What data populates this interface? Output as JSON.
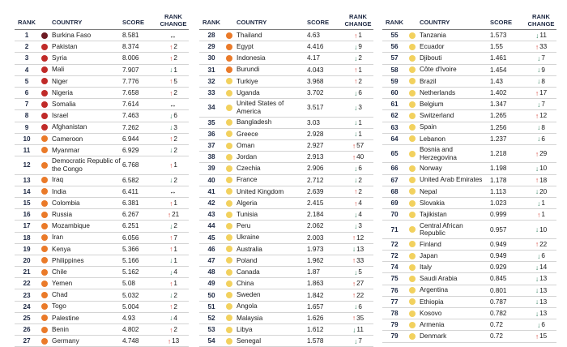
{
  "headers": {
    "rank": "RANK",
    "country": "COUNTRY",
    "score": "SCORE",
    "change_line1": "RANK",
    "change_line2": "CHANGE"
  },
  "colors": {
    "darkred": "#6d1b23",
    "red": "#c02a28",
    "orange": "#ea7a29",
    "yellow": "#f2d15e",
    "up": "#d43a2f",
    "down": "#2e7d5b"
  },
  "icons": {
    "up": "up-arrow-icon",
    "down": "down-arrow-icon",
    "same": "no-change-icon"
  },
  "columns": [
    [
      {
        "rank": "1",
        "country": "Burkina Faso",
        "score": "8.581",
        "dir": "same",
        "change": "",
        "level": "darkred"
      },
      {
        "rank": "2",
        "country": "Pakistan",
        "score": "8.374",
        "dir": "up",
        "change": "2",
        "level": "red"
      },
      {
        "rank": "3",
        "country": "Syria",
        "score": "8.006",
        "dir": "up",
        "change": "2",
        "level": "red"
      },
      {
        "rank": "4",
        "country": "Mali",
        "score": "7.907",
        "dir": "down",
        "change": "1",
        "level": "red"
      },
      {
        "rank": "5",
        "country": "Niger",
        "score": "7.776",
        "dir": "up",
        "change": "5",
        "level": "red"
      },
      {
        "rank": "6",
        "country": "Nigeria",
        "score": "7.658",
        "dir": "up",
        "change": "2",
        "level": "red"
      },
      {
        "rank": "7",
        "country": "Somalia",
        "score": "7.614",
        "dir": "same",
        "change": "",
        "level": "red"
      },
      {
        "rank": "8",
        "country": "Israel",
        "score": "7.463",
        "dir": "down",
        "change": "6",
        "level": "red"
      },
      {
        "rank": "9",
        "country": "Afghanistan",
        "score": "7.262",
        "dir": "down",
        "change": "3",
        "level": "red"
      },
      {
        "rank": "10",
        "country": "Cameroon",
        "score": "6.944",
        "dir": "up",
        "change": "2",
        "level": "orange"
      },
      {
        "rank": "11",
        "country": "Myanmar",
        "score": "6.929",
        "dir": "down",
        "change": "2",
        "level": "orange"
      },
      {
        "rank": "12",
        "country": "Democratic Republic of the Congo",
        "score": "6.768",
        "dir": "up",
        "change": "1",
        "level": "orange",
        "tall": true
      },
      {
        "rank": "13",
        "country": "Iraq",
        "score": "6.582",
        "dir": "down",
        "change": "2",
        "level": "orange"
      },
      {
        "rank": "14",
        "country": "India",
        "score": "6.411",
        "dir": "same",
        "change": "",
        "level": "orange"
      },
      {
        "rank": "15",
        "country": "Colombia",
        "score": "6.381",
        "dir": "up",
        "change": "1",
        "level": "orange"
      },
      {
        "rank": "16",
        "country": "Russia",
        "score": "6.267",
        "dir": "up",
        "change": "21",
        "level": "orange"
      },
      {
        "rank": "17",
        "country": "Mozambique",
        "score": "6.251",
        "dir": "down",
        "change": "2",
        "level": "orange"
      },
      {
        "rank": "18",
        "country": "Iran",
        "score": "6.056",
        "dir": "up",
        "change": "7",
        "level": "orange"
      },
      {
        "rank": "19",
        "country": "Kenya",
        "score": "5.366",
        "dir": "up",
        "change": "1",
        "level": "orange"
      },
      {
        "rank": "20",
        "country": "Philippines",
        "score": "5.166",
        "dir": "down",
        "change": "1",
        "level": "orange"
      },
      {
        "rank": "21",
        "country": "Chile",
        "score": "5.162",
        "dir": "down",
        "change": "4",
        "level": "orange"
      },
      {
        "rank": "22",
        "country": "Yemen",
        "score": "5.08",
        "dir": "up",
        "change": "1",
        "level": "orange"
      },
      {
        "rank": "23",
        "country": "Chad",
        "score": "5.032",
        "dir": "down",
        "change": "2",
        "level": "orange"
      },
      {
        "rank": "24",
        "country": "Togo",
        "score": "5.004",
        "dir": "up",
        "change": "2",
        "level": "orange"
      },
      {
        "rank": "25",
        "country": "Palestine",
        "score": "4.93",
        "dir": "down",
        "change": "4",
        "level": "orange"
      },
      {
        "rank": "26",
        "country": "Benin",
        "score": "4.802",
        "dir": "up",
        "change": "2",
        "level": "orange"
      },
      {
        "rank": "27",
        "country": "Germany",
        "score": "4.748",
        "dir": "up",
        "change": "13",
        "level": "orange"
      }
    ],
    [
      {
        "rank": "28",
        "country": "Thailand",
        "score": "4.63",
        "dir": "up",
        "change": "1",
        "level": "orange"
      },
      {
        "rank": "29",
        "country": "Egypt",
        "score": "4.416",
        "dir": "down",
        "change": "9",
        "level": "orange"
      },
      {
        "rank": "30",
        "country": "Indonesia",
        "score": "4.17",
        "dir": "down",
        "change": "2",
        "level": "orange"
      },
      {
        "rank": "31",
        "country": "Burundi",
        "score": "4.043",
        "dir": "up",
        "change": "1",
        "level": "orange"
      },
      {
        "rank": "32",
        "country": "Turkiye",
        "score": "3.968",
        "dir": "up",
        "change": "2",
        "level": "yellow"
      },
      {
        "rank": "33",
        "country": "Uganda",
        "score": "3.702",
        "dir": "down",
        "change": "6",
        "level": "yellow"
      },
      {
        "rank": "34",
        "country": "United States of America",
        "score": "3.517",
        "dir": "down",
        "change": "3",
        "level": "yellow",
        "tall": true
      },
      {
        "rank": "35",
        "country": "Bangladesh",
        "score": "3.03",
        "dir": "down",
        "change": "1",
        "level": "yellow"
      },
      {
        "rank": "36",
        "country": "Greece",
        "score": "2.928",
        "dir": "down",
        "change": "1",
        "level": "yellow"
      },
      {
        "rank": "37",
        "country": "Oman",
        "score": "2.927",
        "dir": "up",
        "change": "57",
        "level": "yellow"
      },
      {
        "rank": "38",
        "country": "Jordan",
        "score": "2.913",
        "dir": "up",
        "change": "40",
        "level": "yellow"
      },
      {
        "rank": "39",
        "country": "Czechia",
        "score": "2.906",
        "dir": "down",
        "change": "6",
        "level": "yellow"
      },
      {
        "rank": "40",
        "country": "France",
        "score": "2.712",
        "dir": "down",
        "change": "2",
        "level": "yellow"
      },
      {
        "rank": "41",
        "country": "United Kingdom",
        "score": "2.639",
        "dir": "up",
        "change": "2",
        "level": "yellow"
      },
      {
        "rank": "42",
        "country": "Algeria",
        "score": "2.415",
        "dir": "up",
        "change": "4",
        "level": "yellow"
      },
      {
        "rank": "43",
        "country": "Tunisia",
        "score": "2.184",
        "dir": "down",
        "change": "4",
        "level": "yellow"
      },
      {
        "rank": "44",
        "country": "Peru",
        "score": "2.062",
        "dir": "down",
        "change": "3",
        "level": "yellow"
      },
      {
        "rank": "45",
        "country": "Ukraine",
        "score": "2.003",
        "dir": "up",
        "change": "12",
        "level": "yellow"
      },
      {
        "rank": "46",
        "country": "Australia",
        "score": "1.973",
        "dir": "down",
        "change": "13",
        "level": "yellow"
      },
      {
        "rank": "47",
        "country": "Poland",
        "score": "1.962",
        "dir": "up",
        "change": "33",
        "level": "yellow"
      },
      {
        "rank": "48",
        "country": "Canada",
        "score": "1.87",
        "dir": "down",
        "change": "5",
        "level": "yellow"
      },
      {
        "rank": "49",
        "country": "China",
        "score": "1.863",
        "dir": "up",
        "change": "27",
        "level": "yellow"
      },
      {
        "rank": "50",
        "country": "Sweden",
        "score": "1.842",
        "dir": "up",
        "change": "22",
        "level": "yellow"
      },
      {
        "rank": "51",
        "country": "Angola",
        "score": "1.657",
        "dir": "down",
        "change": "6",
        "level": "yellow"
      },
      {
        "rank": "52",
        "country": "Malaysia",
        "score": "1.626",
        "dir": "up",
        "change": "35",
        "level": "yellow"
      },
      {
        "rank": "53",
        "country": "Libya",
        "score": "1.612",
        "dir": "down",
        "change": "11",
        "level": "yellow"
      },
      {
        "rank": "54",
        "country": "Senegal",
        "score": "1.578",
        "dir": "down",
        "change": "7",
        "level": "yellow"
      }
    ],
    [
      {
        "rank": "55",
        "country": "Tanzania",
        "score": "1.573",
        "dir": "down",
        "change": "11",
        "level": "yellow"
      },
      {
        "rank": "56",
        "country": "Ecuador",
        "score": "1.55",
        "dir": "up",
        "change": "33",
        "level": "yellow"
      },
      {
        "rank": "57",
        "country": "Djibouti",
        "score": "1.461",
        "dir": "down",
        "change": "7",
        "level": "yellow"
      },
      {
        "rank": "58",
        "country": "Côte d'Ivoire",
        "score": "1.454",
        "dir": "down",
        "change": "9",
        "level": "yellow"
      },
      {
        "rank": "59",
        "country": "Brazil",
        "score": "1.43",
        "dir": "down",
        "change": "8",
        "level": "yellow"
      },
      {
        "rank": "60",
        "country": "Netherlands",
        "score": "1.402",
        "dir": "up",
        "change": "17",
        "level": "yellow"
      },
      {
        "rank": "61",
        "country": "Belgium",
        "score": "1.347",
        "dir": "down",
        "change": "7",
        "level": "yellow"
      },
      {
        "rank": "62",
        "country": "Switzerland",
        "score": "1.265",
        "dir": "up",
        "change": "12",
        "level": "yellow"
      },
      {
        "rank": "63",
        "country": "Spain",
        "score": "1.256",
        "dir": "down",
        "change": "8",
        "level": "yellow"
      },
      {
        "rank": "64",
        "country": "Lebanon",
        "score": "1.237",
        "dir": "down",
        "change": "6",
        "level": "yellow"
      },
      {
        "rank": "65",
        "country": "Bosnia and Herzegovina",
        "score": "1.218",
        "dir": "up",
        "change": "29",
        "level": "yellow",
        "tall": true
      },
      {
        "rank": "66",
        "country": "Norway",
        "score": "1.198",
        "dir": "down",
        "change": "10",
        "level": "yellow"
      },
      {
        "rank": "67",
        "country": "United Arab Emirates",
        "score": "1.178",
        "dir": "up",
        "change": "18",
        "level": "yellow"
      },
      {
        "rank": "68",
        "country": "Nepal",
        "score": "1.113",
        "dir": "down",
        "change": "20",
        "level": "yellow"
      },
      {
        "rank": "69",
        "country": "Slovakia",
        "score": "1.023",
        "dir": "down",
        "change": "1",
        "level": "yellow"
      },
      {
        "rank": "70",
        "country": "Tajikistan",
        "score": "0.999",
        "dir": "up",
        "change": "1",
        "level": "yellow"
      },
      {
        "rank": "71",
        "country": "Central African Republic",
        "score": "0.957",
        "dir": "down",
        "change": "10",
        "level": "yellow",
        "tall": true
      },
      {
        "rank": "72",
        "country": "Finland",
        "score": "0.949",
        "dir": "up",
        "change": "22",
        "level": "yellow"
      },
      {
        "rank": "72",
        "country": "Japan",
        "score": "0.949",
        "dir": "down",
        "change": "6",
        "level": "yellow"
      },
      {
        "rank": "74",
        "country": "Italy",
        "score": "0.929",
        "dir": "down",
        "change": "14",
        "level": "yellow"
      },
      {
        "rank": "75",
        "country": "Saudi Arabia",
        "score": "0.845",
        "dir": "down",
        "change": "13",
        "level": "yellow"
      },
      {
        "rank": "76",
        "country": "Argentina",
        "score": "0.801",
        "dir": "down",
        "change": "13",
        "level": "yellow"
      },
      {
        "rank": "77",
        "country": "Ethiopia",
        "score": "0.787",
        "dir": "down",
        "change": "13",
        "level": "yellow"
      },
      {
        "rank": "78",
        "country": "Kosovo",
        "score": "0.782",
        "dir": "down",
        "change": "13",
        "level": "yellow"
      },
      {
        "rank": "79",
        "country": "Armenia",
        "score": "0.72",
        "dir": "down",
        "change": "6",
        "level": "yellow"
      },
      {
        "rank": "79",
        "country": "Denmark",
        "score": "0.72",
        "dir": "up",
        "change": "15",
        "level": "yellow"
      }
    ]
  ]
}
